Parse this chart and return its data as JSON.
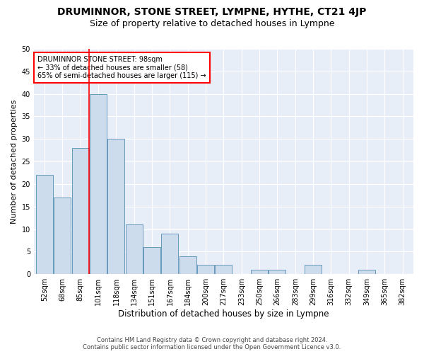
{
  "title": "DRUMINNOR, STONE STREET, LYMPNE, HYTHE, CT21 4JP",
  "subtitle": "Size of property relative to detached houses in Lympne",
  "xlabel": "Distribution of detached houses by size in Lympne",
  "ylabel": "Number of detached properties",
  "footer1": "Contains HM Land Registry data © Crown copyright and database right 2024.",
  "footer2": "Contains public sector information licensed under the Open Government Licence v3.0.",
  "categories": [
    "52sqm",
    "68sqm",
    "85sqm",
    "101sqm",
    "118sqm",
    "134sqm",
    "151sqm",
    "167sqm",
    "184sqm",
    "200sqm",
    "217sqm",
    "233sqm",
    "250sqm",
    "266sqm",
    "283sqm",
    "299sqm",
    "316sqm",
    "332sqm",
    "349sqm",
    "365sqm",
    "382sqm"
  ],
  "values": [
    22,
    17,
    28,
    40,
    30,
    11,
    6,
    9,
    4,
    2,
    2,
    0,
    1,
    1,
    0,
    2,
    0,
    0,
    1,
    0,
    0
  ],
  "bar_color": "#ccdcec",
  "bar_edge_color": "#6699bb",
  "vertical_line_x": 2.5,
  "annotation_text": "DRUMINNOR STONE STREET: 98sqm\n← 33% of detached houses are smaller (58)\n65% of semi-detached houses are larger (115) →",
  "annotation_box_color": "white",
  "annotation_box_edge_color": "red",
  "vline_color": "red",
  "ylim": [
    0,
    50
  ],
  "yticks": [
    0,
    5,
    10,
    15,
    20,
    25,
    30,
    35,
    40,
    45,
    50
  ],
  "bg_color": "#e8eef8",
  "grid_color": "white",
  "title_fontsize": 10,
  "subtitle_fontsize": 9,
  "xlabel_fontsize": 8.5,
  "ylabel_fontsize": 8,
  "tick_fontsize": 7,
  "annotation_fontsize": 7,
  "footer_fontsize": 6
}
